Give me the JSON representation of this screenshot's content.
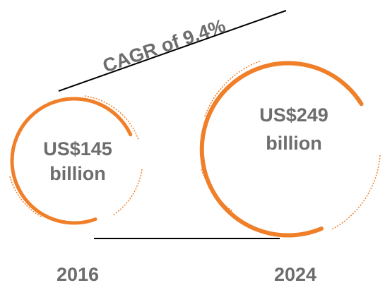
{
  "headline": "CAGR of 9.4%",
  "items": [
    {
      "amount": "US$145",
      "unit": "billion",
      "year": "2016"
    },
    {
      "amount": "US$249",
      "unit": "billion",
      "year": "2024"
    }
  ]
}
